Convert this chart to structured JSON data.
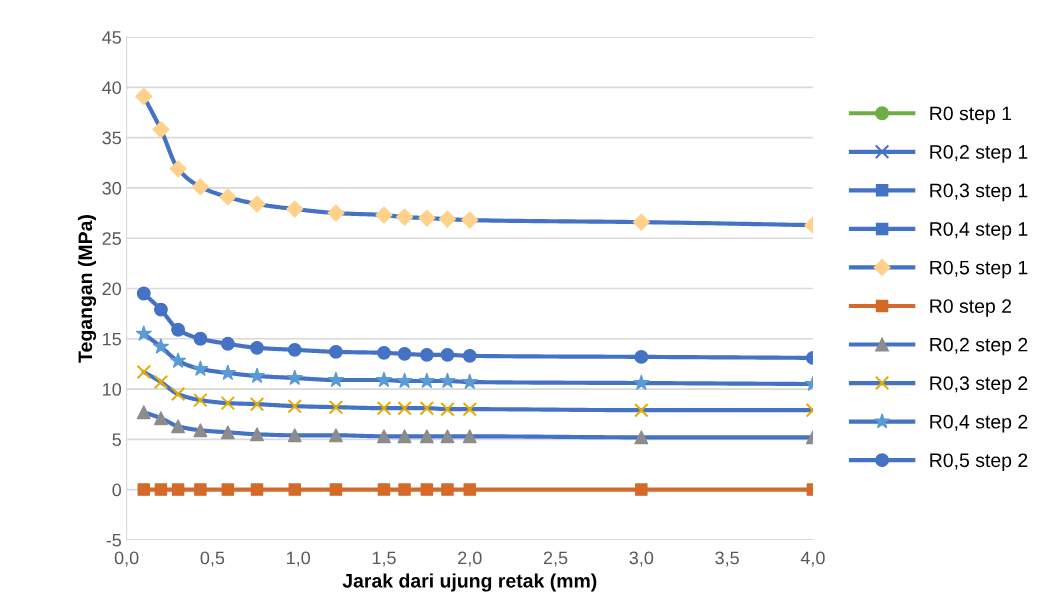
{
  "chart_data": {
    "type": "line",
    "xlabel": "Jarak dari ujung retak (mm)",
    "ylabel": "Tegangan (MPa)",
    "x": [
      0.1,
      0.2,
      0.3,
      0.43,
      0.59,
      0.76,
      0.98,
      1.22,
      1.5,
      1.62,
      1.75,
      1.87,
      2.0,
      3.0,
      4.0
    ],
    "xlim": [
      0,
      4
    ],
    "xticks": [
      {
        "value": 0,
        "label": "0,0"
      },
      {
        "value": 0.5,
        "label": "0,5"
      },
      {
        "value": 1,
        "label": "1,0"
      },
      {
        "value": 1.5,
        "label": "1,5"
      },
      {
        "value": 2,
        "label": "2,0"
      },
      {
        "value": 2.5,
        "label": "2,5"
      },
      {
        "value": 3,
        "label": "3,0"
      },
      {
        "value": 3.5,
        "label": "3,5"
      },
      {
        "value": 4,
        "label": "4,0"
      }
    ],
    "ylim": [
      -5,
      45
    ],
    "yticks": [
      -5,
      0,
      5,
      10,
      15,
      20,
      25,
      30,
      35,
      40,
      45
    ],
    "grid": "y",
    "legend": "right",
    "series": [
      {
        "name": "R0 step 1",
        "color": "#70ad47",
        "marker": "circle",
        "values": [
          null,
          null,
          null,
          null,
          null,
          null,
          null,
          null,
          null,
          null,
          null,
          null,
          null,
          null,
          null
        ]
      },
      {
        "name": "R0,2 step 1",
        "color": "#4472c4",
        "marker": "cross",
        "values": [
          null,
          null,
          null,
          null,
          null,
          null,
          null,
          null,
          null,
          null,
          null,
          null,
          null,
          null,
          null
        ]
      },
      {
        "name": "R0,3 step 1",
        "color": "#4472c4",
        "marker": "square",
        "values": [
          null,
          null,
          null,
          null,
          null,
          null,
          null,
          null,
          null,
          null,
          null,
          null,
          null,
          null,
          null
        ]
      },
      {
        "name": "R0,4 step 1",
        "color": "#4472c4",
        "marker": "square",
        "values": [
          null,
          null,
          null,
          null,
          null,
          null,
          null,
          null,
          null,
          null,
          null,
          null,
          null,
          null,
          null
        ]
      },
      {
        "name": "R0,5 step 1",
        "color": "#4472c4",
        "marker": "diamond",
        "colors": [
          "#ffd18a",
          "#ffd18a",
          "#ffd18a",
          "#ffd18a",
          "#ffd18a",
          "#ffd18a",
          "#ffd18a",
          "#ffd18a",
          "#ffd18a",
          "#ffd18a",
          "#ffd18a",
          "#ffd18a",
          "#ffd18a",
          "#ffd18a",
          "#ffd18a"
        ],
        "values": [
          39.1,
          35.8,
          31.9,
          30.1,
          29.1,
          28.4,
          27.9,
          27.5,
          27.3,
          27.1,
          27.0,
          26.9,
          26.8,
          26.6,
          26.3
        ]
      },
      {
        "name": "R0 step 2",
        "color": "#d4692a",
        "marker": "square",
        "values": [
          0,
          0,
          0,
          0,
          0,
          0,
          0,
          0,
          0,
          0,
          0,
          0,
          0,
          0,
          0
        ]
      },
      {
        "name": "R0,2 step 2",
        "color": "#4472c4",
        "marker": "triangle",
        "colors": [
          "#8c8c8c",
          "#8c8c8c",
          "#8c8c8c",
          "#8c8c8c",
          "#8c8c8c",
          "#8c8c8c",
          "#8c8c8c",
          "#8c8c8c",
          "#8c8c8c",
          "#8c8c8c",
          "#8c8c8c",
          "#8c8c8c",
          "#8c8c8c",
          "#8c8c8c",
          "#8c8c8c"
        ],
        "values": [
          7.7,
          7.1,
          6.3,
          5.9,
          5.7,
          5.5,
          5.4,
          5.4,
          5.3,
          5.3,
          5.3,
          5.3,
          5.3,
          5.2,
          5.2
        ]
      },
      {
        "name": "R0,3 step 2",
        "color": "#4472c4",
        "marker": "cross",
        "colors": [
          "#e6ae00",
          "#e6ae00",
          "#e6ae00",
          "#e6ae00",
          "#e6ae00",
          "#e6ae00",
          "#e6ae00",
          "#e6ae00",
          "#e6ae00",
          "#e6ae00",
          "#e6ae00",
          "#e6ae00",
          "#e6ae00",
          "#e6ae00",
          "#e6ae00"
        ],
        "values": [
          11.7,
          10.7,
          9.5,
          8.9,
          8.6,
          8.5,
          8.3,
          8.2,
          8.1,
          8.1,
          8.1,
          8.0,
          8.0,
          7.9,
          7.9
        ]
      },
      {
        "name": "R0,4 step 2",
        "color": "#4472c4",
        "marker": "star",
        "colors": [
          "#5b9bd5",
          "#5b9bd5",
          "#5b9bd5",
          "#5b9bd5",
          "#5b9bd5",
          "#5b9bd5",
          "#5b9bd5",
          "#5b9bd5",
          "#5b9bd5",
          "#5b9bd5",
          "#5b9bd5",
          "#5b9bd5",
          "#5b9bd5",
          "#5b9bd5",
          "#5b9bd5"
        ],
        "values": [
          15.5,
          14.2,
          12.8,
          12.0,
          11.6,
          11.3,
          11.1,
          10.9,
          10.9,
          10.8,
          10.8,
          10.8,
          10.7,
          10.6,
          10.5
        ]
      },
      {
        "name": "R0,5 step 2",
        "color": "#4472c4",
        "marker": "circle",
        "values": [
          19.5,
          17.9,
          15.9,
          15.0,
          14.5,
          14.1,
          13.9,
          13.7,
          13.6,
          13.5,
          13.4,
          13.4,
          13.3,
          13.2,
          13.1
        ]
      }
    ]
  }
}
